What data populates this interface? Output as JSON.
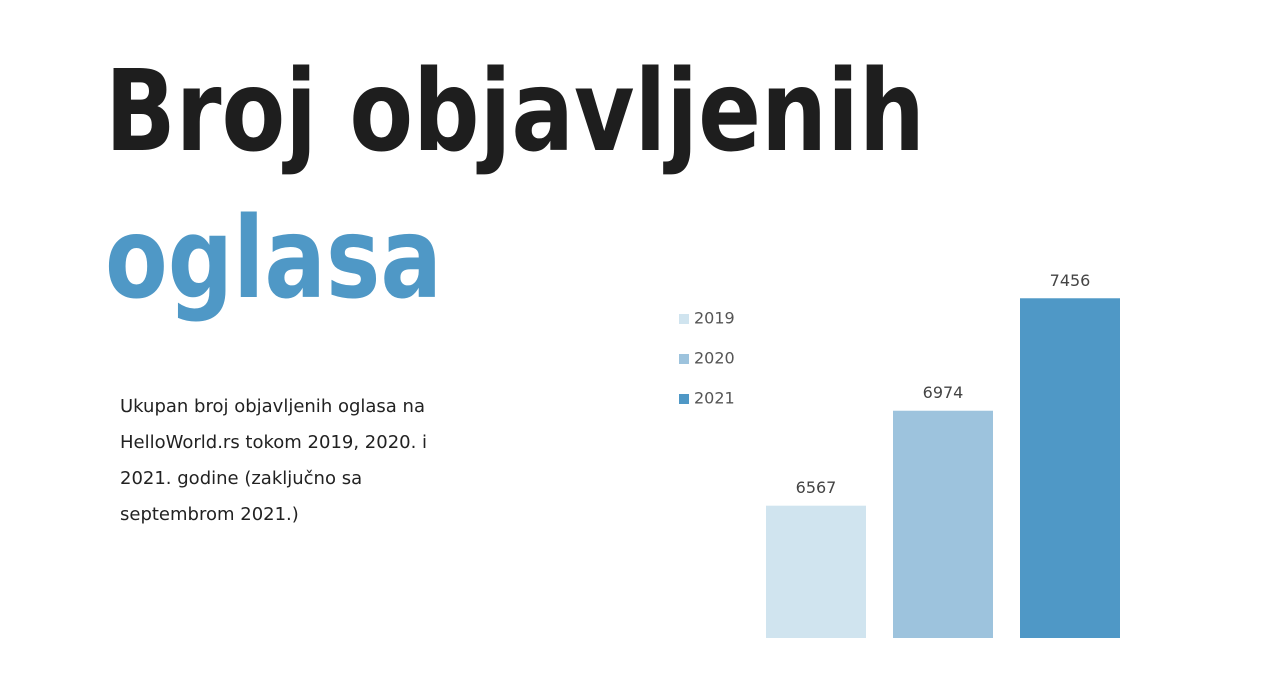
{
  "chart_data": {
    "type": "bar",
    "title": "Broj objavljenih",
    "title_highlight": "oglasa",
    "description": "Ukupan broj objavljenih oglasa na HelloWorld.rs tokom 2019, 2020. i 2021. godine (zaključno sa septembrom 2021.)",
    "categories": [
      null
    ],
    "series": [
      {
        "name": "2019",
        "color": "#d0e4ef",
        "values": [
          6567
        ]
      },
      {
        "name": "2020",
        "color": "#9dc3dd",
        "values": [
          6974
        ]
      },
      {
        "name": "2021",
        "color": "#4f98c6",
        "values": [
          7456
        ]
      }
    ],
    "ylim": [
      6000,
      7500
    ],
    "legend": "left"
  }
}
